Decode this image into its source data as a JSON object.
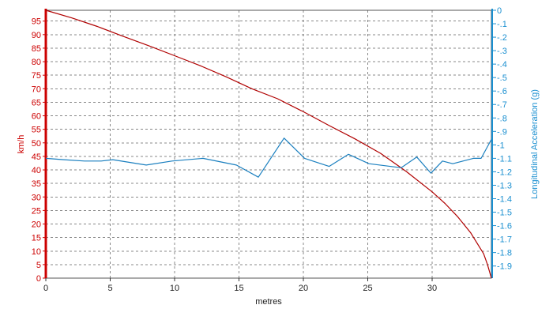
{
  "chart_data": {
    "type": "line",
    "title": "",
    "xlabel": "metres",
    "ylabel_left": "km/h",
    "ylabel_right": "Longitudinal Acceleration (g)",
    "xlim": [
      0,
      34.6
    ],
    "ylim_left": [
      0,
      99
    ],
    "ylim_right": [
      -1.99,
      0
    ],
    "x_ticks": [
      0,
      5,
      10,
      15,
      20,
      25,
      30
    ],
    "y_left_ticks": [
      0,
      5,
      10,
      15,
      20,
      25,
      30,
      35,
      40,
      45,
      50,
      55,
      60,
      65,
      70,
      75,
      80,
      85,
      90,
      95
    ],
    "y_right_ticks": [
      0,
      -0.1,
      -0.2,
      -0.3,
      -0.4,
      -0.5,
      -0.6,
      -0.7,
      -0.8,
      -0.9,
      -1,
      -1.1,
      -1.2,
      -1.3,
      -1.4,
      -1.5,
      -1.6,
      -1.7,
      -1.8,
      -1.9
    ],
    "grid": true,
    "colors": {
      "speed": "#b00000",
      "acceleration": "#1a7fbf",
      "left_axis": "#cc0000",
      "right_axis": "#1a8fd0",
      "grid": "#888888"
    },
    "series": [
      {
        "axis": "left",
        "x": [
          0,
          2,
          4,
          6,
          8,
          10,
          12,
          14,
          16,
          18,
          20,
          22,
          24,
          26,
          28,
          30,
          31,
          32,
          33,
          34,
          34.3,
          34.6
        ],
        "y": [
          99,
          96.2,
          93.0,
          89.4,
          85.9,
          82.2,
          78.5,
          74.4,
          70.0,
          66.3,
          61.5,
          56.4,
          51.5,
          46.1,
          39.4,
          31.9,
          27.6,
          22.6,
          16.7,
          9.0,
          5.0,
          0
        ]
      },
      {
        "axis": "right",
        "x": [
          0,
          1.4,
          3,
          4.3,
          5.2,
          7.8,
          9.8,
          12.2,
          14.8,
          16.5,
          18.5,
          20.1,
          22,
          23.5,
          25.1,
          27.6,
          28.8,
          29.9,
          30.8,
          31.6,
          32.4,
          33.2,
          33.8,
          34.6
        ],
        "y": [
          -1.1,
          -1.11,
          -1.12,
          -1.12,
          -1.11,
          -1.15,
          -1.12,
          -1.1,
          -1.15,
          -1.24,
          -0.95,
          -1.1,
          -1.16,
          -1.07,
          -1.14,
          -1.17,
          -1.09,
          -1.21,
          -1.12,
          -1.14,
          -1.12,
          -1.1,
          -1.1,
          -0.96
        ]
      }
    ]
  }
}
